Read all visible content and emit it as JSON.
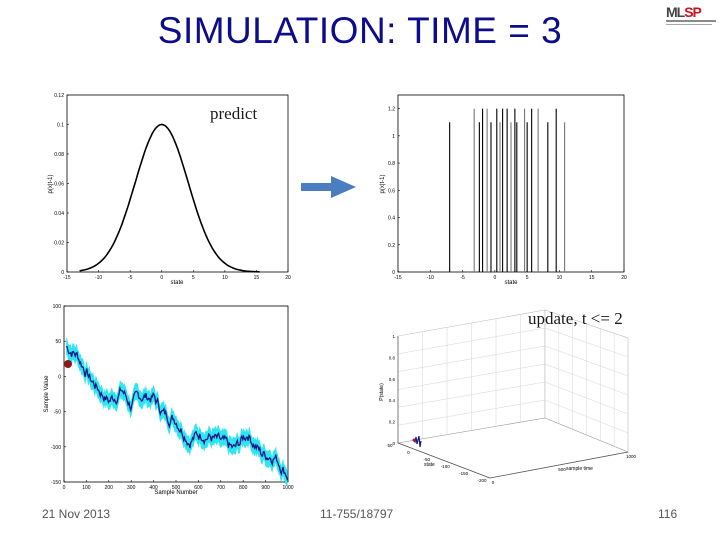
{
  "slide": {
    "title": "SIMULATION: TIME = 3",
    "logo_text_ml": "ML",
    "logo_text_sp": "SP",
    "predict_label": "predict",
    "update_label": "update, t <= 2",
    "footer_left": "21  Nov 2013",
    "footer_center": "11-755/18797",
    "footer_right": "116"
  },
  "colors": {
    "title": "#0c0c8c",
    "arrow": "#4a7ec0",
    "band": "#2ee6f0",
    "mean_line": "#16168a",
    "marker": "#8b1a1a"
  },
  "plots": {
    "gaussian": {
      "ylabel": "p(x|t-1)",
      "xlabel": "state",
      "xticks": [
        "-15",
        "-10",
        "-5",
        "0",
        "5",
        "10",
        "15",
        "20"
      ],
      "yticks": [
        "0",
        "0.02",
        "0.04",
        "0.06",
        "0.08",
        "0.1",
        "0.12"
      ]
    },
    "particles": {
      "ylabel": "p(x|t-1)",
      "xlabel": "state",
      "xticks": [
        "-15",
        "-10",
        "-5",
        "0",
        "5",
        "10",
        "15",
        "20"
      ],
      "yticks": [
        "0",
        "0.2",
        "0.4",
        "0.6",
        "0.8",
        "1",
        "1.2"
      ],
      "positions": [
        -7,
        -3.2,
        -2.4,
        -1.9,
        -1.2,
        -0.6,
        0.3,
        0.8,
        1.2,
        1.9,
        2.5,
        3.1,
        3.4,
        4.6,
        5.0,
        5.7,
        6.7,
        8.2,
        9.5,
        10.8
      ],
      "heights": [
        1.1,
        1.2,
        1.1,
        1.2,
        1.2,
        1.1,
        1.2,
        1.1,
        1.2,
        1.2,
        1.1,
        1.2,
        1.1,
        1.2,
        1.1,
        1.2,
        1.2,
        1.1,
        1.2,
        1.1
      ]
    },
    "timeseries": {
      "ylabel": "Sample Value",
      "xlabel": "Sample Number",
      "xticks": [
        "0",
        "100",
        "200",
        "300",
        "400",
        "500",
        "600",
        "700",
        "800",
        "900",
        "1000"
      ],
      "yticks": [
        "100",
        "50",
        "0",
        "-50",
        "-100",
        "-150"
      ]
    },
    "surface3d": {
      "zlabel": "P(state)",
      "zticks": [
        "0",
        "0.2",
        "0.4",
        "0.6",
        "0.8",
        "1"
      ],
      "left_ticks": [
        "50",
        "0",
        "-50",
        "-100",
        "-150",
        "-200"
      ],
      "right_ticks": [
        "0",
        "500",
        "1000"
      ],
      "axis1_label": "state",
      "axis2_label": "sample time"
    }
  }
}
